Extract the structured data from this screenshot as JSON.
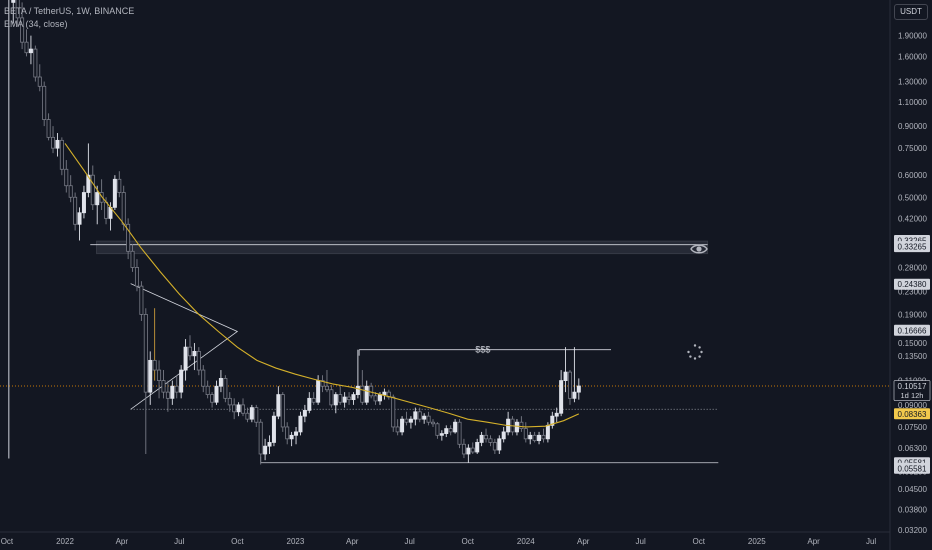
{
  "header": {
    "symbol_line": "BETA / TetherUS, 1W, BINANCE",
    "indicator_line": "EMA (34, close)"
  },
  "currency_button": "USDT",
  "overlay": {
    "sss_label": "$$$"
  },
  "colors": {
    "background": "#131722",
    "up_candle": "#e0e3eb",
    "down_candle": "#787b86",
    "ema": "#d4b02a",
    "grid_text": "#b2b5be",
    "last_price": "#ff9800"
  },
  "chart_data": {
    "type": "candlestick",
    "scale": "log",
    "y_ticks": [
      "2.30000",
      "1.90000",
      "1.60000",
      "1.30000",
      "1.10000",
      "0.90000",
      "0.75000",
      "0.60000",
      "0.50000",
      "0.42000",
      "0.35000",
      "0.28000",
      "0.23000",
      "0.19000",
      "0.15000",
      "0.13500",
      "0.11000",
      "0.09000",
      "0.07500",
      "0.06300",
      "0.05200",
      "0.04500",
      "0.03800",
      "0.03200"
    ],
    "x_ticks": [
      "Oct",
      "2022",
      "Apr",
      "Jul",
      "Oct",
      "2023",
      "Apr",
      "Jul",
      "Oct",
      "2024",
      "Apr",
      "Jul",
      "Oct",
      "2025",
      "Apr",
      "Jul"
    ],
    "x_range": [
      "2021-09-20",
      "2025-07-31"
    ],
    "y_range": [
      0.0315,
      2.55
    ],
    "price_labels": [
      {
        "text": "0.33265",
        "price": 0.35,
        "style": "box"
      },
      {
        "text": "0.33265",
        "price": 0.33265,
        "style": "box"
      },
      {
        "text": "0.24380",
        "price": 0.2438,
        "style": "box"
      },
      {
        "text": "0.16666",
        "price": 0.16666,
        "style": "box"
      },
      {
        "text": "0.10517",
        "price": 0.10517,
        "style": "current",
        "sub": "1d 12h"
      },
      {
        "text": "0.08363",
        "price": 0.08363,
        "style": "ema"
      },
      {
        "text": "0.05581",
        "price": 0.05581,
        "style": "box"
      },
      {
        "text": "0.05581",
        "price": 0.05331,
        "style": "box"
      }
    ],
    "levels": {
      "zone_top": 0.348,
      "zone_bottom": 0.314,
      "zone_line": 0.338,
      "upper_high": 0.142,
      "dotted": 0.0868,
      "low": 0.05581,
      "current": 0.10517
    },
    "wedge_points": [
      [
        "2022-04-15",
        0.245
      ],
      [
        "2022-10-01",
        0.165
      ],
      [
        "2022-04-15",
        0.0868
      ]
    ],
    "ema_points": [
      [
        "2022-01-01",
        0.78
      ],
      [
        "2022-02-01",
        0.62
      ],
      [
        "2022-03-01",
        0.5
      ],
      [
        "2022-04-01",
        0.41
      ],
      [
        "2022-05-01",
        0.33
      ],
      [
        "2022-06-01",
        0.27
      ],
      [
        "2022-07-01",
        0.225
      ],
      [
        "2022-08-01",
        0.19
      ],
      [
        "2022-09-01",
        0.165
      ],
      [
        "2022-10-01",
        0.145
      ],
      [
        "2022-11-01",
        0.13
      ],
      [
        "2022-12-01",
        0.122
      ],
      [
        "2023-01-01",
        0.116
      ],
      [
        "2023-02-01",
        0.111
      ],
      [
        "2023-03-01",
        0.107
      ],
      [
        "2023-04-01",
        0.104
      ],
      [
        "2023-05-01",
        0.1
      ],
      [
        "2023-06-01",
        0.096
      ],
      [
        "2023-07-01",
        0.092
      ],
      [
        "2023-08-01",
        0.088
      ],
      [
        "2023-09-01",
        0.084
      ],
      [
        "2023-10-01",
        0.08
      ],
      [
        "2023-11-01",
        0.078
      ],
      [
        "2023-12-01",
        0.076
      ],
      [
        "2024-01-01",
        0.075
      ],
      [
        "2024-02-01",
        0.0755
      ],
      [
        "2024-03-01",
        0.079
      ],
      [
        "2024-03-25",
        0.0836
      ]
    ],
    "candles": [
      [
        "2021-10-11",
        2.5,
        3.4,
        2.1,
        2.7
      ],
      [
        "2021-10-18",
        2.7,
        2.9,
        2.05,
        2.2
      ],
      [
        "2021-10-25",
        2.2,
        2.5,
        1.7,
        1.8
      ],
      [
        "2021-11-01",
        1.8,
        2.0,
        1.6,
        1.65
      ],
      [
        "2021-11-08",
        1.65,
        1.9,
        1.5,
        1.7
      ],
      [
        "2021-11-15",
        1.7,
        1.75,
        1.3,
        1.35
      ],
      [
        "2021-11-22",
        1.35,
        1.5,
        1.2,
        1.25
      ],
      [
        "2021-11-29",
        1.25,
        1.3,
        0.9,
        0.95
      ],
      [
        "2021-12-06",
        0.95,
        1.0,
        0.8,
        0.82
      ],
      [
        "2021-12-13",
        0.82,
        0.9,
        0.72,
        0.75
      ],
      [
        "2021-12-20",
        0.75,
        0.85,
        0.7,
        0.8
      ],
      [
        "2021-12-27",
        0.8,
        0.82,
        0.6,
        0.63
      ],
      [
        "2022-01-03",
        0.63,
        0.68,
        0.52,
        0.55
      ],
      [
        "2022-01-10",
        0.55,
        0.6,
        0.48,
        0.5
      ],
      [
        "2022-01-17",
        0.5,
        0.52,
        0.38,
        0.4
      ],
      [
        "2022-01-24",
        0.4,
        0.46,
        0.35,
        0.44
      ],
      [
        "2022-01-31",
        0.44,
        0.55,
        0.42,
        0.52
      ],
      [
        "2022-02-07",
        0.52,
        0.78,
        0.5,
        0.6
      ],
      [
        "2022-02-14",
        0.6,
        0.65,
        0.45,
        0.47
      ],
      [
        "2022-02-21",
        0.47,
        0.55,
        0.4,
        0.52
      ],
      [
        "2022-02-28",
        0.52,
        0.58,
        0.45,
        0.48
      ],
      [
        "2022-03-07",
        0.48,
        0.5,
        0.4,
        0.42
      ],
      [
        "2022-03-14",
        0.42,
        0.48,
        0.38,
        0.46
      ],
      [
        "2022-03-21",
        0.46,
        0.6,
        0.45,
        0.58
      ],
      [
        "2022-03-28",
        0.58,
        0.62,
        0.5,
        0.52
      ],
      [
        "2022-04-04",
        0.52,
        0.55,
        0.38,
        0.4
      ],
      [
        "2022-04-11",
        0.4,
        0.42,
        0.3,
        0.32
      ],
      [
        "2022-04-18",
        0.32,
        0.34,
        0.27,
        0.28
      ],
      [
        "2022-04-25",
        0.28,
        0.3,
        0.23,
        0.24
      ],
      [
        "2022-05-02",
        0.24,
        0.25,
        0.18,
        0.19
      ],
      [
        "2022-05-09",
        0.19,
        0.2,
        0.06,
        0.1
      ],
      [
        "2022-05-16",
        0.1,
        0.14,
        0.09,
        0.13
      ],
      [
        "2022-05-23",
        0.13,
        0.2,
        0.11,
        0.12
      ],
      [
        "2022-05-30",
        0.12,
        0.13,
        0.095,
        0.11
      ],
      [
        "2022-06-06",
        0.11,
        0.12,
        0.095,
        0.1
      ],
      [
        "2022-06-13",
        0.1,
        0.11,
        0.085,
        0.095
      ],
      [
        "2022-06-20",
        0.095,
        0.11,
        0.09,
        0.105
      ],
      [
        "2022-06-27",
        0.105,
        0.115,
        0.095,
        0.1
      ],
      [
        "2022-07-04",
        0.1,
        0.125,
        0.095,
        0.12
      ],
      [
        "2022-07-11",
        0.12,
        0.155,
        0.11,
        0.145
      ],
      [
        "2022-07-18",
        0.145,
        0.16,
        0.13,
        0.135
      ],
      [
        "2022-07-25",
        0.135,
        0.15,
        0.12,
        0.14
      ],
      [
        "2022-08-01",
        0.14,
        0.145,
        0.115,
        0.12
      ],
      [
        "2022-08-08",
        0.12,
        0.125,
        0.1,
        0.105
      ],
      [
        "2022-08-15",
        0.105,
        0.11,
        0.095,
        0.098
      ],
      [
        "2022-08-22",
        0.098,
        0.1,
        0.088,
        0.092
      ],
      [
        "2022-08-29",
        0.092,
        0.11,
        0.09,
        0.105
      ],
      [
        "2022-09-05",
        0.105,
        0.12,
        0.1,
        0.112
      ],
      [
        "2022-09-12",
        0.112,
        0.115,
        0.092,
        0.095
      ],
      [
        "2022-09-19",
        0.095,
        0.1,
        0.085,
        0.09
      ],
      [
        "2022-09-26",
        0.09,
        0.095,
        0.08,
        0.085
      ],
      [
        "2022-10-03",
        0.085,
        0.092,
        0.082,
        0.09
      ],
      [
        "2022-10-10",
        0.09,
        0.095,
        0.082,
        0.084
      ],
      [
        "2022-10-17",
        0.084,
        0.088,
        0.078,
        0.08
      ],
      [
        "2022-10-24",
        0.08,
        0.09,
        0.078,
        0.088
      ],
      [
        "2022-10-31",
        0.088,
        0.09,
        0.075,
        0.078
      ],
      [
        "2022-11-07",
        0.078,
        0.08,
        0.055,
        0.06
      ],
      [
        "2022-11-14",
        0.06,
        0.068,
        0.057,
        0.064
      ],
      [
        "2022-11-21",
        0.064,
        0.07,
        0.06,
        0.066
      ],
      [
        "2022-11-28",
        0.066,
        0.085,
        0.064,
        0.082
      ],
      [
        "2022-12-05",
        0.082,
        0.105,
        0.08,
        0.098
      ],
      [
        "2022-12-12",
        0.098,
        0.1,
        0.072,
        0.075
      ],
      [
        "2022-12-19",
        0.075,
        0.078,
        0.065,
        0.068
      ],
      [
        "2022-12-26",
        0.068,
        0.072,
        0.064,
        0.07
      ],
      [
        "2023-01-02",
        0.07,
        0.075,
        0.065,
        0.072
      ],
      [
        "2023-01-09",
        0.072,
        0.085,
        0.07,
        0.082
      ],
      [
        "2023-01-16",
        0.082,
        0.09,
        0.078,
        0.086
      ],
      [
        "2023-01-23",
        0.086,
        0.1,
        0.084,
        0.095
      ],
      [
        "2023-01-30",
        0.095,
        0.1,
        0.09,
        0.092
      ],
      [
        "2023-02-06",
        0.092,
        0.115,
        0.09,
        0.11
      ],
      [
        "2023-02-13",
        0.11,
        0.115,
        0.1,
        0.105
      ],
      [
        "2023-02-20",
        0.105,
        0.12,
        0.1,
        0.102
      ],
      [
        "2023-02-27",
        0.102,
        0.106,
        0.088,
        0.09
      ],
      [
        "2023-03-06",
        0.09,
        0.1,
        0.084,
        0.098
      ],
      [
        "2023-03-13",
        0.098,
        0.105,
        0.09,
        0.092
      ],
      [
        "2023-03-20",
        0.092,
        0.1,
        0.088,
        0.096
      ],
      [
        "2023-03-27",
        0.096,
        0.1,
        0.09,
        0.094
      ],
      [
        "2023-04-03",
        0.094,
        0.1,
        0.09,
        0.098
      ],
      [
        "2023-04-10",
        0.098,
        0.142,
        0.095,
        0.105
      ],
      [
        "2023-04-17",
        0.105,
        0.12,
        0.09,
        0.092
      ],
      [
        "2023-04-24",
        0.092,
        0.11,
        0.09,
        0.105
      ],
      [
        "2023-05-01",
        0.105,
        0.108,
        0.095,
        0.097
      ],
      [
        "2023-05-08",
        0.097,
        0.1,
        0.09,
        0.093
      ],
      [
        "2023-05-15",
        0.093,
        0.1,
        0.09,
        0.098
      ],
      [
        "2023-05-22",
        0.098,
        0.103,
        0.094,
        0.1
      ],
      [
        "2023-05-29",
        0.1,
        0.102,
        0.094,
        0.096
      ],
      [
        "2023-06-05",
        0.096,
        0.098,
        0.072,
        0.075
      ],
      [
        "2023-06-12",
        0.075,
        0.08,
        0.07,
        0.072
      ],
      [
        "2023-06-19",
        0.072,
        0.082,
        0.07,
        0.08
      ],
      [
        "2023-06-26",
        0.08,
        0.085,
        0.076,
        0.078
      ],
      [
        "2023-07-03",
        0.078,
        0.082,
        0.074,
        0.08
      ],
      [
        "2023-07-10",
        0.08,
        0.088,
        0.076,
        0.085
      ],
      [
        "2023-07-17",
        0.085,
        0.088,
        0.078,
        0.08
      ],
      [
        "2023-07-24",
        0.08,
        0.084,
        0.077,
        0.082
      ],
      [
        "2023-07-31",
        0.082,
        0.085,
        0.076,
        0.078
      ],
      [
        "2023-08-07",
        0.078,
        0.08,
        0.075,
        0.077
      ],
      [
        "2023-08-14",
        0.077,
        0.078,
        0.068,
        0.07
      ],
      [
        "2023-08-21",
        0.07,
        0.073,
        0.067,
        0.071
      ],
      [
        "2023-08-28",
        0.071,
        0.076,
        0.069,
        0.074
      ],
      [
        "2023-09-04",
        0.074,
        0.076,
        0.07,
        0.072
      ],
      [
        "2023-09-11",
        0.072,
        0.08,
        0.071,
        0.078
      ],
      [
        "2023-09-18",
        0.078,
        0.08,
        0.063,
        0.065
      ],
      [
        "2023-09-25",
        0.065,
        0.068,
        0.058,
        0.06
      ],
      [
        "2023-10-02",
        0.06,
        0.065,
        0.0558,
        0.063
      ],
      [
        "2023-10-09",
        0.063,
        0.066,
        0.06,
        0.061
      ],
      [
        "2023-10-16",
        0.061,
        0.068,
        0.06,
        0.066
      ],
      [
        "2023-10-23",
        0.066,
        0.072,
        0.064,
        0.07
      ],
      [
        "2023-10-30",
        0.07,
        0.074,
        0.066,
        0.068
      ],
      [
        "2023-11-06",
        0.068,
        0.07,
        0.064,
        0.066
      ],
      [
        "2023-11-13",
        0.066,
        0.068,
        0.06,
        0.062
      ],
      [
        "2023-11-20",
        0.062,
        0.07,
        0.06,
        0.068
      ],
      [
        "2023-11-27",
        0.068,
        0.075,
        0.066,
        0.072
      ],
      [
        "2023-12-04",
        0.072,
        0.085,
        0.07,
        0.08
      ],
      [
        "2023-12-11",
        0.08,
        0.082,
        0.07,
        0.072
      ],
      [
        "2023-12-18",
        0.072,
        0.08,
        0.07,
        0.078
      ],
      [
        "2023-12-25",
        0.078,
        0.082,
        0.072,
        0.074
      ],
      [
        "2024-01-01",
        0.074,
        0.078,
        0.066,
        0.068
      ],
      [
        "2024-01-08",
        0.068,
        0.072,
        0.065,
        0.07
      ],
      [
        "2024-01-15",
        0.07,
        0.072,
        0.066,
        0.067
      ],
      [
        "2024-01-22",
        0.067,
        0.072,
        0.065,
        0.07
      ],
      [
        "2024-01-29",
        0.07,
        0.074,
        0.066,
        0.068
      ],
      [
        "2024-02-05",
        0.068,
        0.078,
        0.066,
        0.076
      ],
      [
        "2024-02-12",
        0.076,
        0.085,
        0.074,
        0.082
      ],
      [
        "2024-02-19",
        0.082,
        0.088,
        0.078,
        0.084
      ],
      [
        "2024-02-26",
        0.084,
        0.12,
        0.082,
        0.11
      ],
      [
        "2024-03-04",
        0.11,
        0.145,
        0.1,
        0.118
      ],
      [
        "2024-03-11",
        0.118,
        0.12,
        0.09,
        0.095
      ],
      [
        "2024-03-18",
        0.095,
        0.145,
        0.092,
        0.1
      ],
      [
        "2024-03-25",
        0.1,
        0.112,
        0.094,
        0.10517
      ]
    ]
  }
}
